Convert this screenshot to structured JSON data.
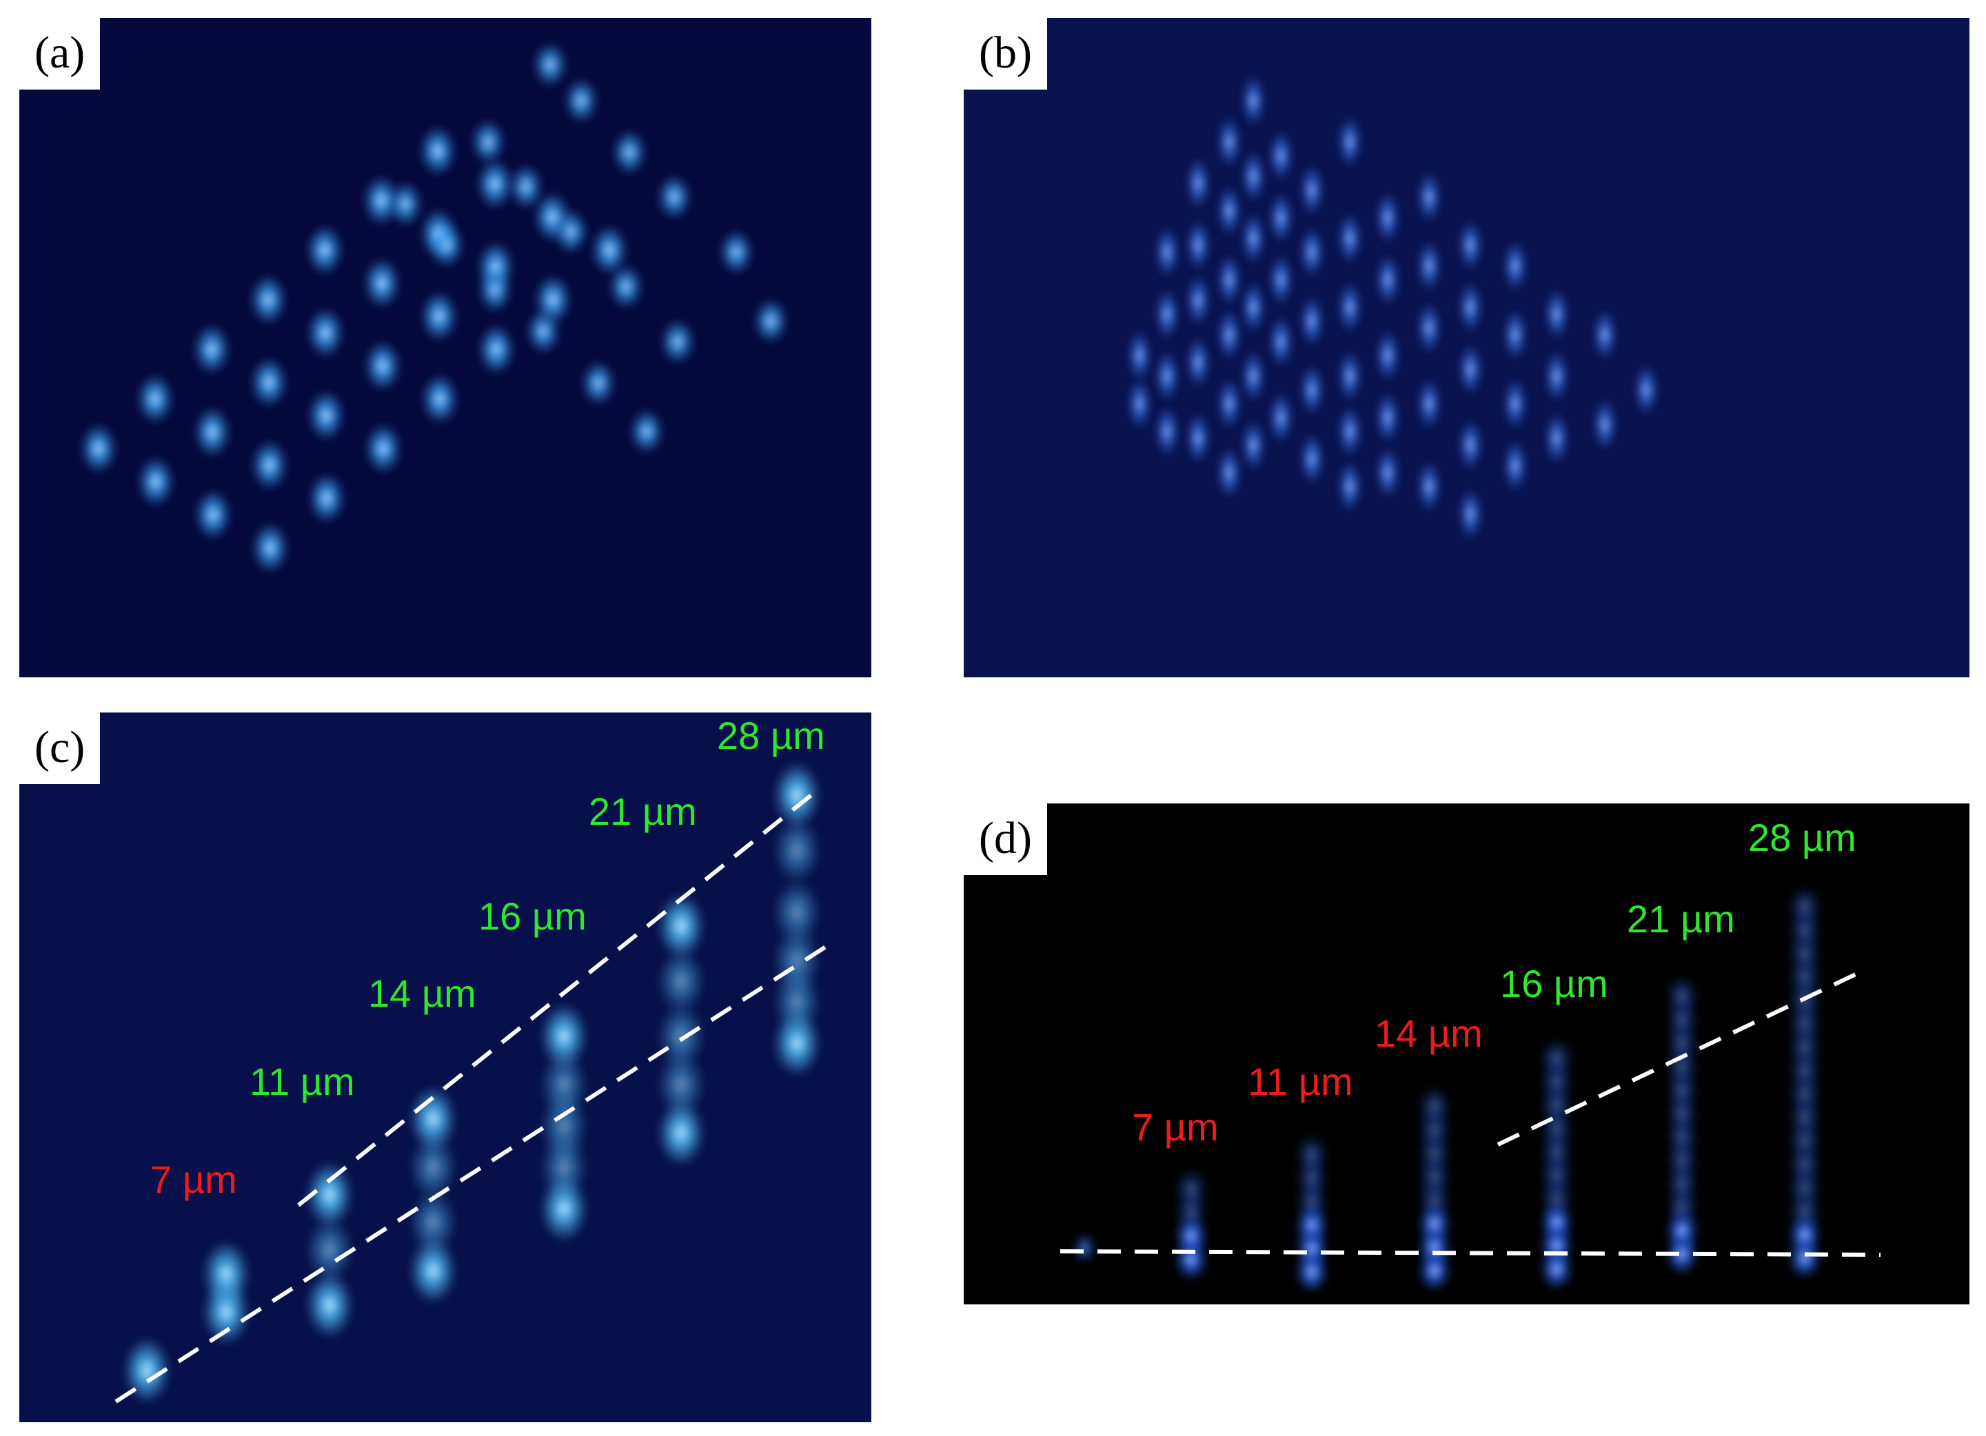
{
  "figure": {
    "panels": [
      {
        "tag": "(a)",
        "image": "fluorescence micrograph: tilted 2D lattice of bright blue spots",
        "background_color": "#05093d",
        "spot_color": "#3fa9ff"
      },
      {
        "tag": "(b)",
        "image": "fluorescence micrograph: diamond-shaped arrangement of elongated blue spots",
        "background_color": "#0a1250",
        "spot_color": "#3f86ff"
      },
      {
        "tag": "(c)",
        "image": "fluorescence micrograph: row of elongated spots, increasing height left to right, with two dashed guide lines",
        "background_color": "#07104a",
        "spot_color": "#52c2ff"
      },
      {
        "tag": "(d)",
        "image": "fluorescence micrograph: row of vertical streaks on black background with dashed guide lines",
        "background_color": "#000000",
        "spot_color": "#2d6bff"
      }
    ],
    "panel_c_labels": [
      {
        "text": "7 µm",
        "color": "red"
      },
      {
        "text": "11 µm",
        "color": "green"
      },
      {
        "text": "14 µm",
        "color": "green"
      },
      {
        "text": "16 µm",
        "color": "green"
      },
      {
        "text": "21 µm",
        "color": "green"
      },
      {
        "text": "28 µm",
        "color": "green"
      }
    ],
    "panel_d_labels": [
      {
        "text": "7 µm",
        "color": "red"
      },
      {
        "text": "11 µm",
        "color": "red"
      },
      {
        "text": "14 µm",
        "color": "red"
      },
      {
        "text": "16 µm",
        "color": "green"
      },
      {
        "text": "21 µm",
        "color": "green"
      },
      {
        "text": "28 µm",
        "color": "green"
      }
    ],
    "colors": {
      "green_label": "#2ee82e",
      "red_label": "#ee1c1c",
      "dashed_line": "#ffffff"
    }
  }
}
